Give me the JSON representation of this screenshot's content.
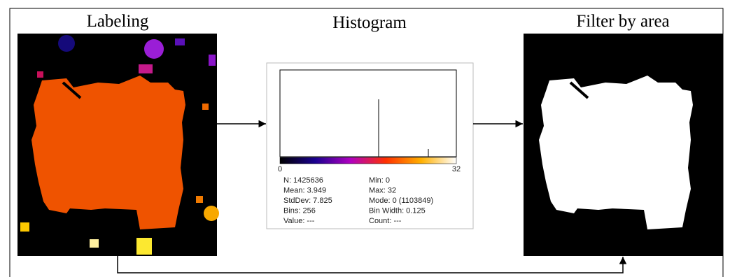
{
  "panels": {
    "labeling": {
      "title": "Labeling"
    },
    "histogram": {
      "title": "Histogram",
      "axis_min": "0",
      "axis_max": "32",
      "stats_left": [
        "N: 1425636",
        "Mean: 3.949",
        "StdDev: 7.825",
        "Bins: 256",
        "Value: ---"
      ],
      "stats_right": [
        "Min: 0",
        "Max: 32",
        "Mode: 0 (1103849)",
        "Bin Width: 0.125",
        "Count: ---"
      ]
    },
    "filter": {
      "title": "Filter by area"
    }
  }
}
